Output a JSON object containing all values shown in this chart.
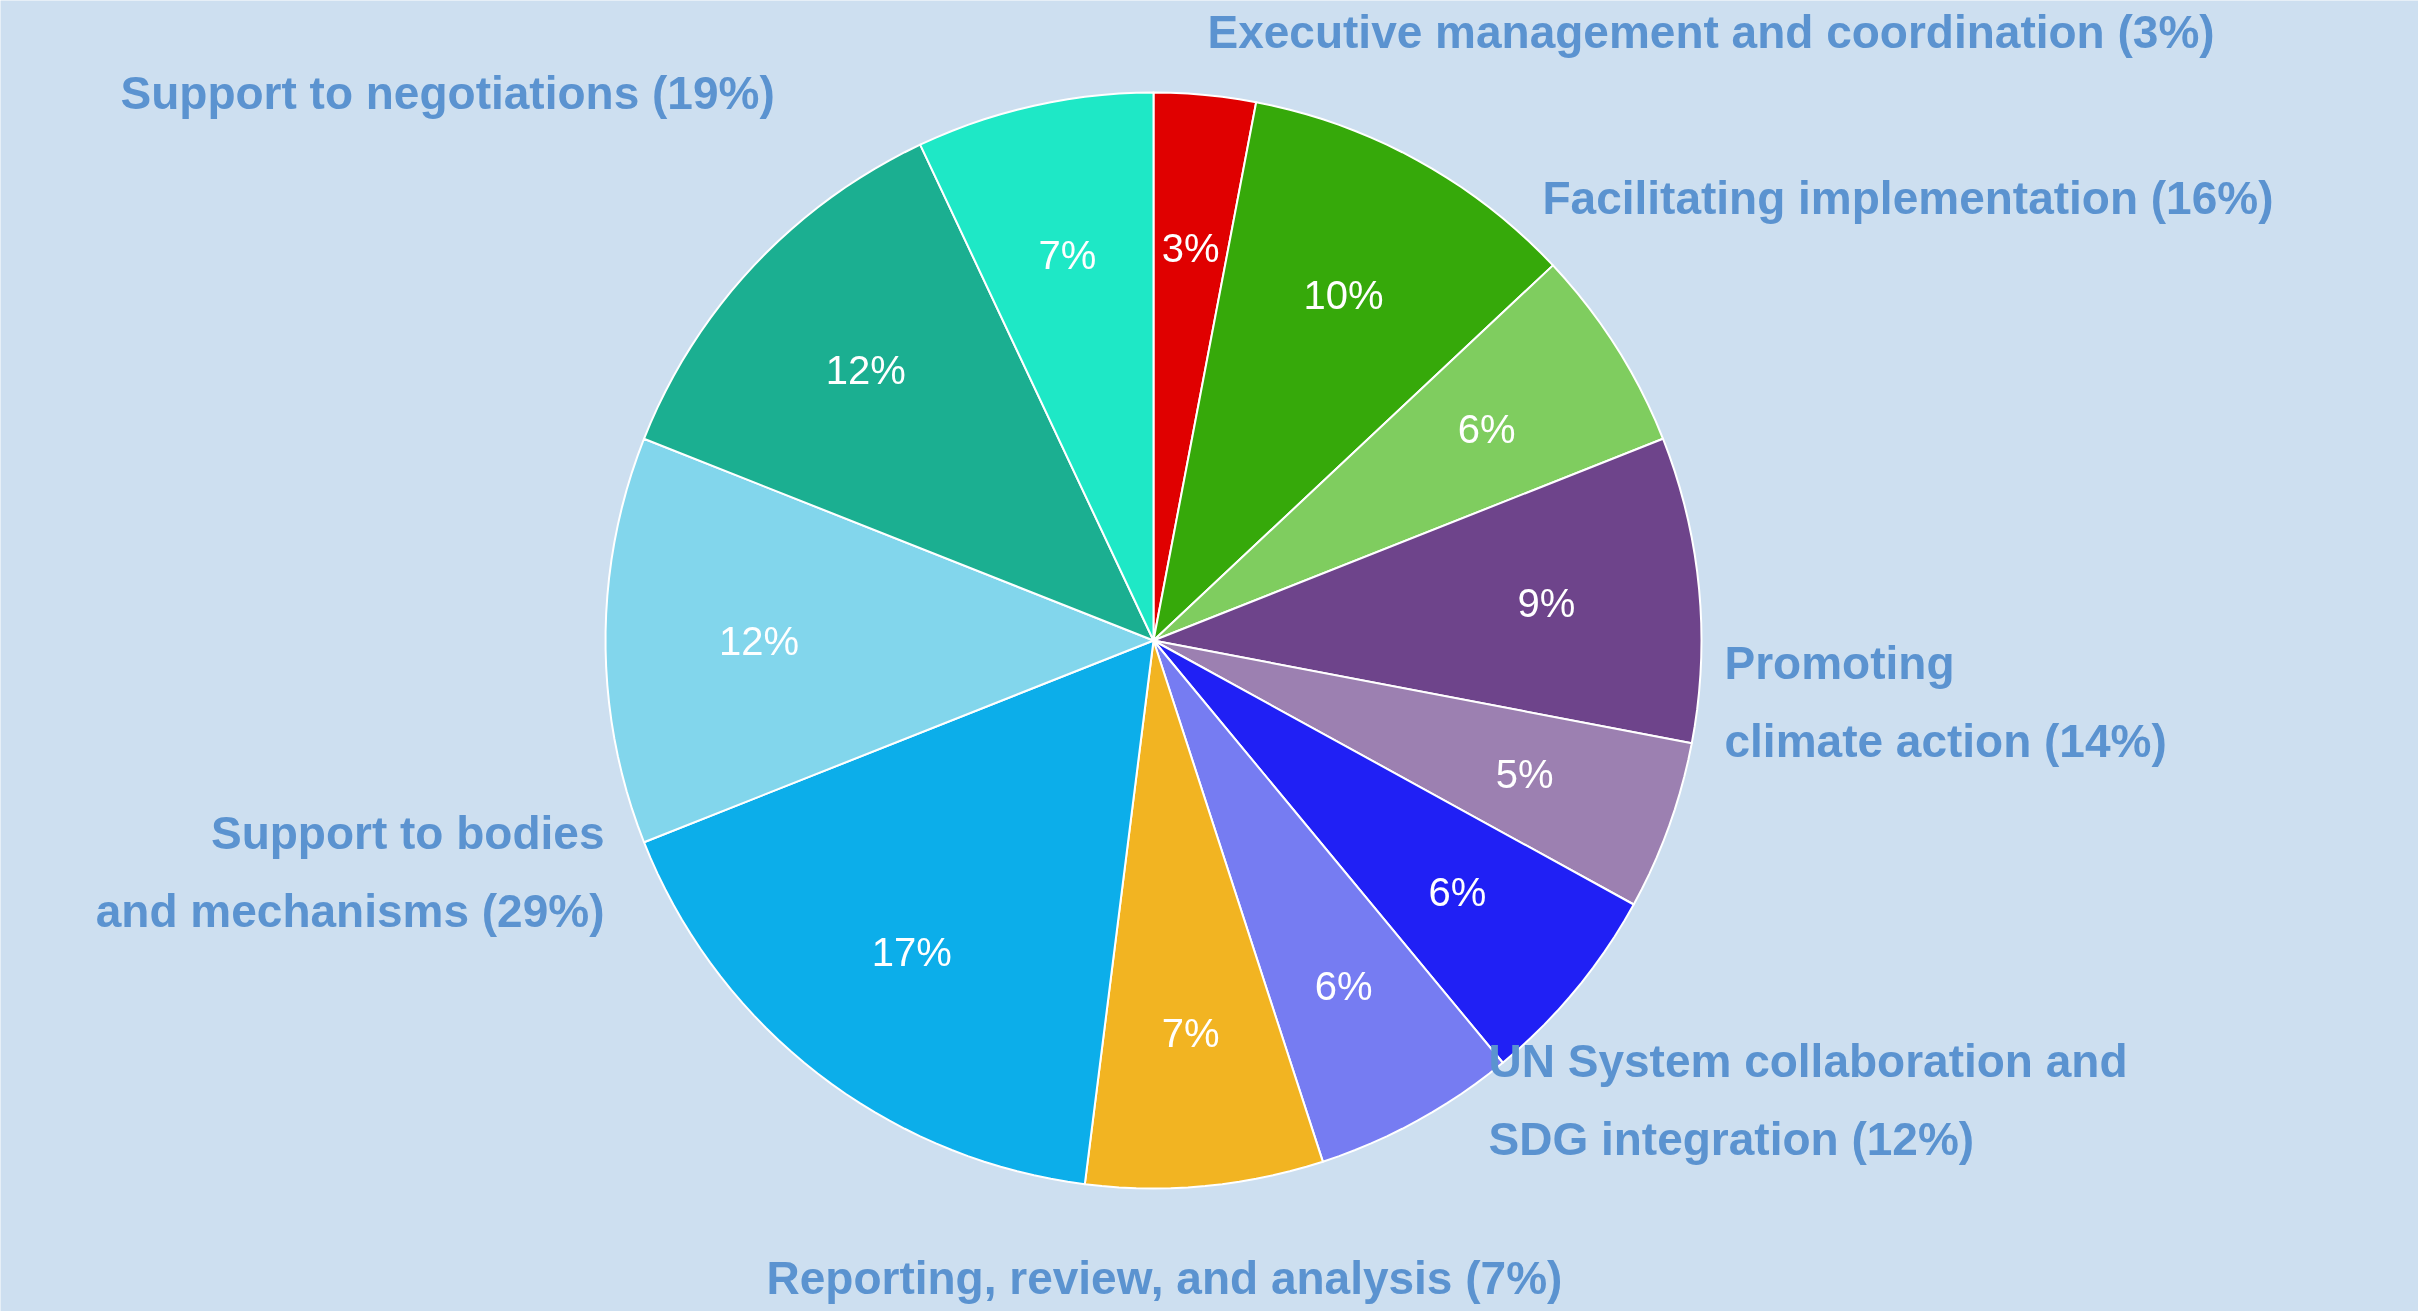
{
  "chart_data": {
    "type": "pie",
    "categories": [
      null,
      null,
      null,
      null,
      null,
      null,
      null,
      null,
      null,
      null,
      null,
      null
    ],
    "values": [
      3,
      10,
      6,
      9,
      5,
      6,
      6,
      7,
      17,
      12,
      12,
      7
    ],
    "colors": [
      "#e00000",
      "#36a90a",
      "#7fcd5f",
      "#6e448b",
      "#9c80b1",
      "#2020f5",
      "#767cf2",
      "#f2b422",
      "#0caeea",
      "#82d6ec",
      "#1baf91",
      "#1ee8c6"
    ],
    "value_labels": [
      "3%",
      "10%",
      "6%",
      "9%",
      "5%",
      "6%",
      "6%",
      "7%",
      "17%",
      "12%",
      "12%",
      "7%"
    ],
    "annotations": [
      "Executive management and coordination (3%)",
      "Facilitating implementation (16%)",
      "Promoting\nclimate action (14%)",
      "UN System collaboration and\nSDG integration (12%)",
      "Reporting, review, and analysis (7%)",
      "Support to bodies\nand mechanisms (29%)",
      "Support to negotiations (19%)"
    ]
  }
}
